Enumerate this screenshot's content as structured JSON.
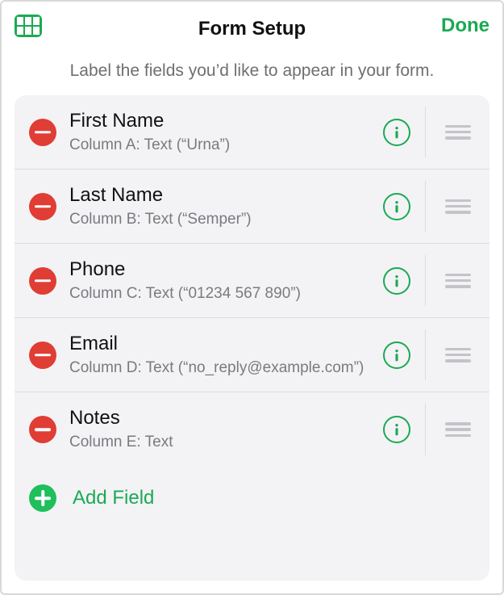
{
  "colors": {
    "accent_green": "#1aaa52",
    "add_green": "#1fbf5b",
    "delete_red": "#e03d34",
    "card_bg": "#f3f3f6",
    "divider": "#dcdce0",
    "text_primary": "#111111",
    "text_secondary": "#7a7a7f",
    "drag_handle": "#c4c4c8"
  },
  "typography": {
    "title_fontsize": 24,
    "subtitle_fontsize": 21,
    "field_label_fontsize": 24,
    "field_detail_fontsize": 19
  },
  "header": {
    "title": "Form Setup",
    "done_label": "Done"
  },
  "subtitle": "Label the fields you’d like to appear in your form.",
  "fields": [
    {
      "label": "First Name",
      "detail": "Column A: Text (“Urna”)"
    },
    {
      "label": "Last Name",
      "detail": "Column B: Text (“Semper”)"
    },
    {
      "label": "Phone",
      "detail": "Column C: Text (“01234 567 890”)"
    },
    {
      "label": "Email",
      "detail": "Column D: Text (“no_reply@example.com”)"
    },
    {
      "label": "Notes",
      "detail": "Column E: Text"
    }
  ],
  "add_field": {
    "label": "Add Field"
  }
}
